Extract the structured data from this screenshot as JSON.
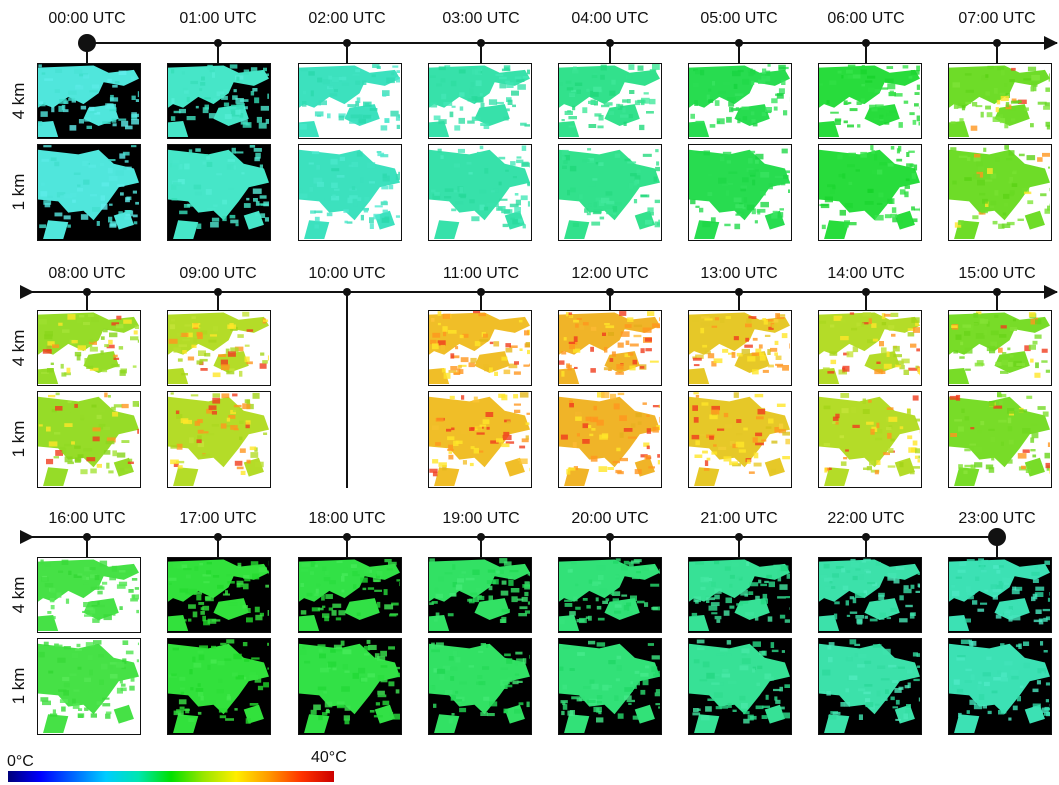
{
  "rows": [
    {
      "times": [
        "00:00 UTC",
        "01:00 UTC",
        "02:00 UTC",
        "03:00 UTC",
        "04:00 UTC",
        "05:00 UTC",
        "06:00 UTC",
        "07:00 UTC"
      ],
      "thumbs": [
        {
          "bg": "#000000",
          "tone": [
            80,
            230,
            220
          ]
        },
        {
          "bg": "#000000",
          "tone": [
            70,
            230,
            200
          ]
        },
        {
          "bg": "#ffffff",
          "tone": [
            60,
            225,
            190
          ]
        },
        {
          "bg": "#ffffff",
          "tone": [
            55,
            225,
            170
          ]
        },
        {
          "bg": "#ffffff",
          "tone": [
            50,
            225,
            140
          ]
        },
        {
          "bg": "#ffffff",
          "tone": [
            40,
            220,
            80
          ]
        },
        {
          "bg": "#ffffff",
          "tone": [
            40,
            220,
            60
          ]
        },
        {
          "bg": "#ffffff",
          "tone": [
            110,
            220,
            40
          ],
          "hot": 0.15
        }
      ],
      "start": "big",
      "end": "arrow"
    },
    {
      "times": [
        "08:00 UTC",
        "09:00 UTC",
        "10:00 UTC",
        "11:00 UTC",
        "12:00 UTC",
        "13:00 UTC",
        "14:00 UTC",
        "15:00 UTC"
      ],
      "thumbs": [
        {
          "bg": "#ffffff",
          "tone": [
            150,
            220,
            40
          ],
          "hot": 0.35
        },
        {
          "bg": "#ffffff",
          "tone": [
            180,
            220,
            40
          ],
          "hot": 0.5
        },
        null,
        {
          "bg": "#ffffff",
          "tone": [
            240,
            190,
            40
          ],
          "hot": 0.8
        },
        {
          "bg": "#ffffff",
          "tone": [
            240,
            180,
            40
          ],
          "hot": 0.85
        },
        {
          "bg": "#ffffff",
          "tone": [
            230,
            200,
            40
          ],
          "hot": 0.7
        },
        {
          "bg": "#ffffff",
          "tone": [
            180,
            220,
            40
          ],
          "hot": 0.5
        },
        {
          "bg": "#ffffff",
          "tone": [
            120,
            220,
            40
          ],
          "hot": 0.25
        }
      ],
      "start": "arrow",
      "end": "arrow"
    },
    {
      "times": [
        "16:00 UTC",
        "17:00 UTC",
        "18:00 UTC",
        "19:00 UTC",
        "20:00 UTC",
        "21:00 UTC",
        "22:00 UTC",
        "23:00 UTC"
      ],
      "thumbs": [
        {
          "bg": "#ffffff",
          "tone": [
            70,
            225,
            70
          ]
        },
        {
          "bg": "#000000",
          "tone": [
            50,
            225,
            60
          ]
        },
        {
          "bg": "#000000",
          "tone": [
            50,
            225,
            70
          ]
        },
        {
          "bg": "#000000",
          "tone": [
            50,
            225,
            100
          ]
        },
        {
          "bg": "#000000",
          "tone": [
            50,
            225,
            120
          ]
        },
        {
          "bg": "#000000",
          "tone": [
            55,
            225,
            150
          ]
        },
        {
          "bg": "#000000",
          "tone": [
            60,
            225,
            170
          ]
        },
        {
          "bg": "#000000",
          "tone": [
            60,
            225,
            180
          ]
        }
      ],
      "start": "arrow",
      "end": "big"
    }
  ],
  "row_labels": [
    "4 km",
    "1 km"
  ],
  "legend": {
    "min_label": "0°C",
    "max_label": "40°C"
  }
}
